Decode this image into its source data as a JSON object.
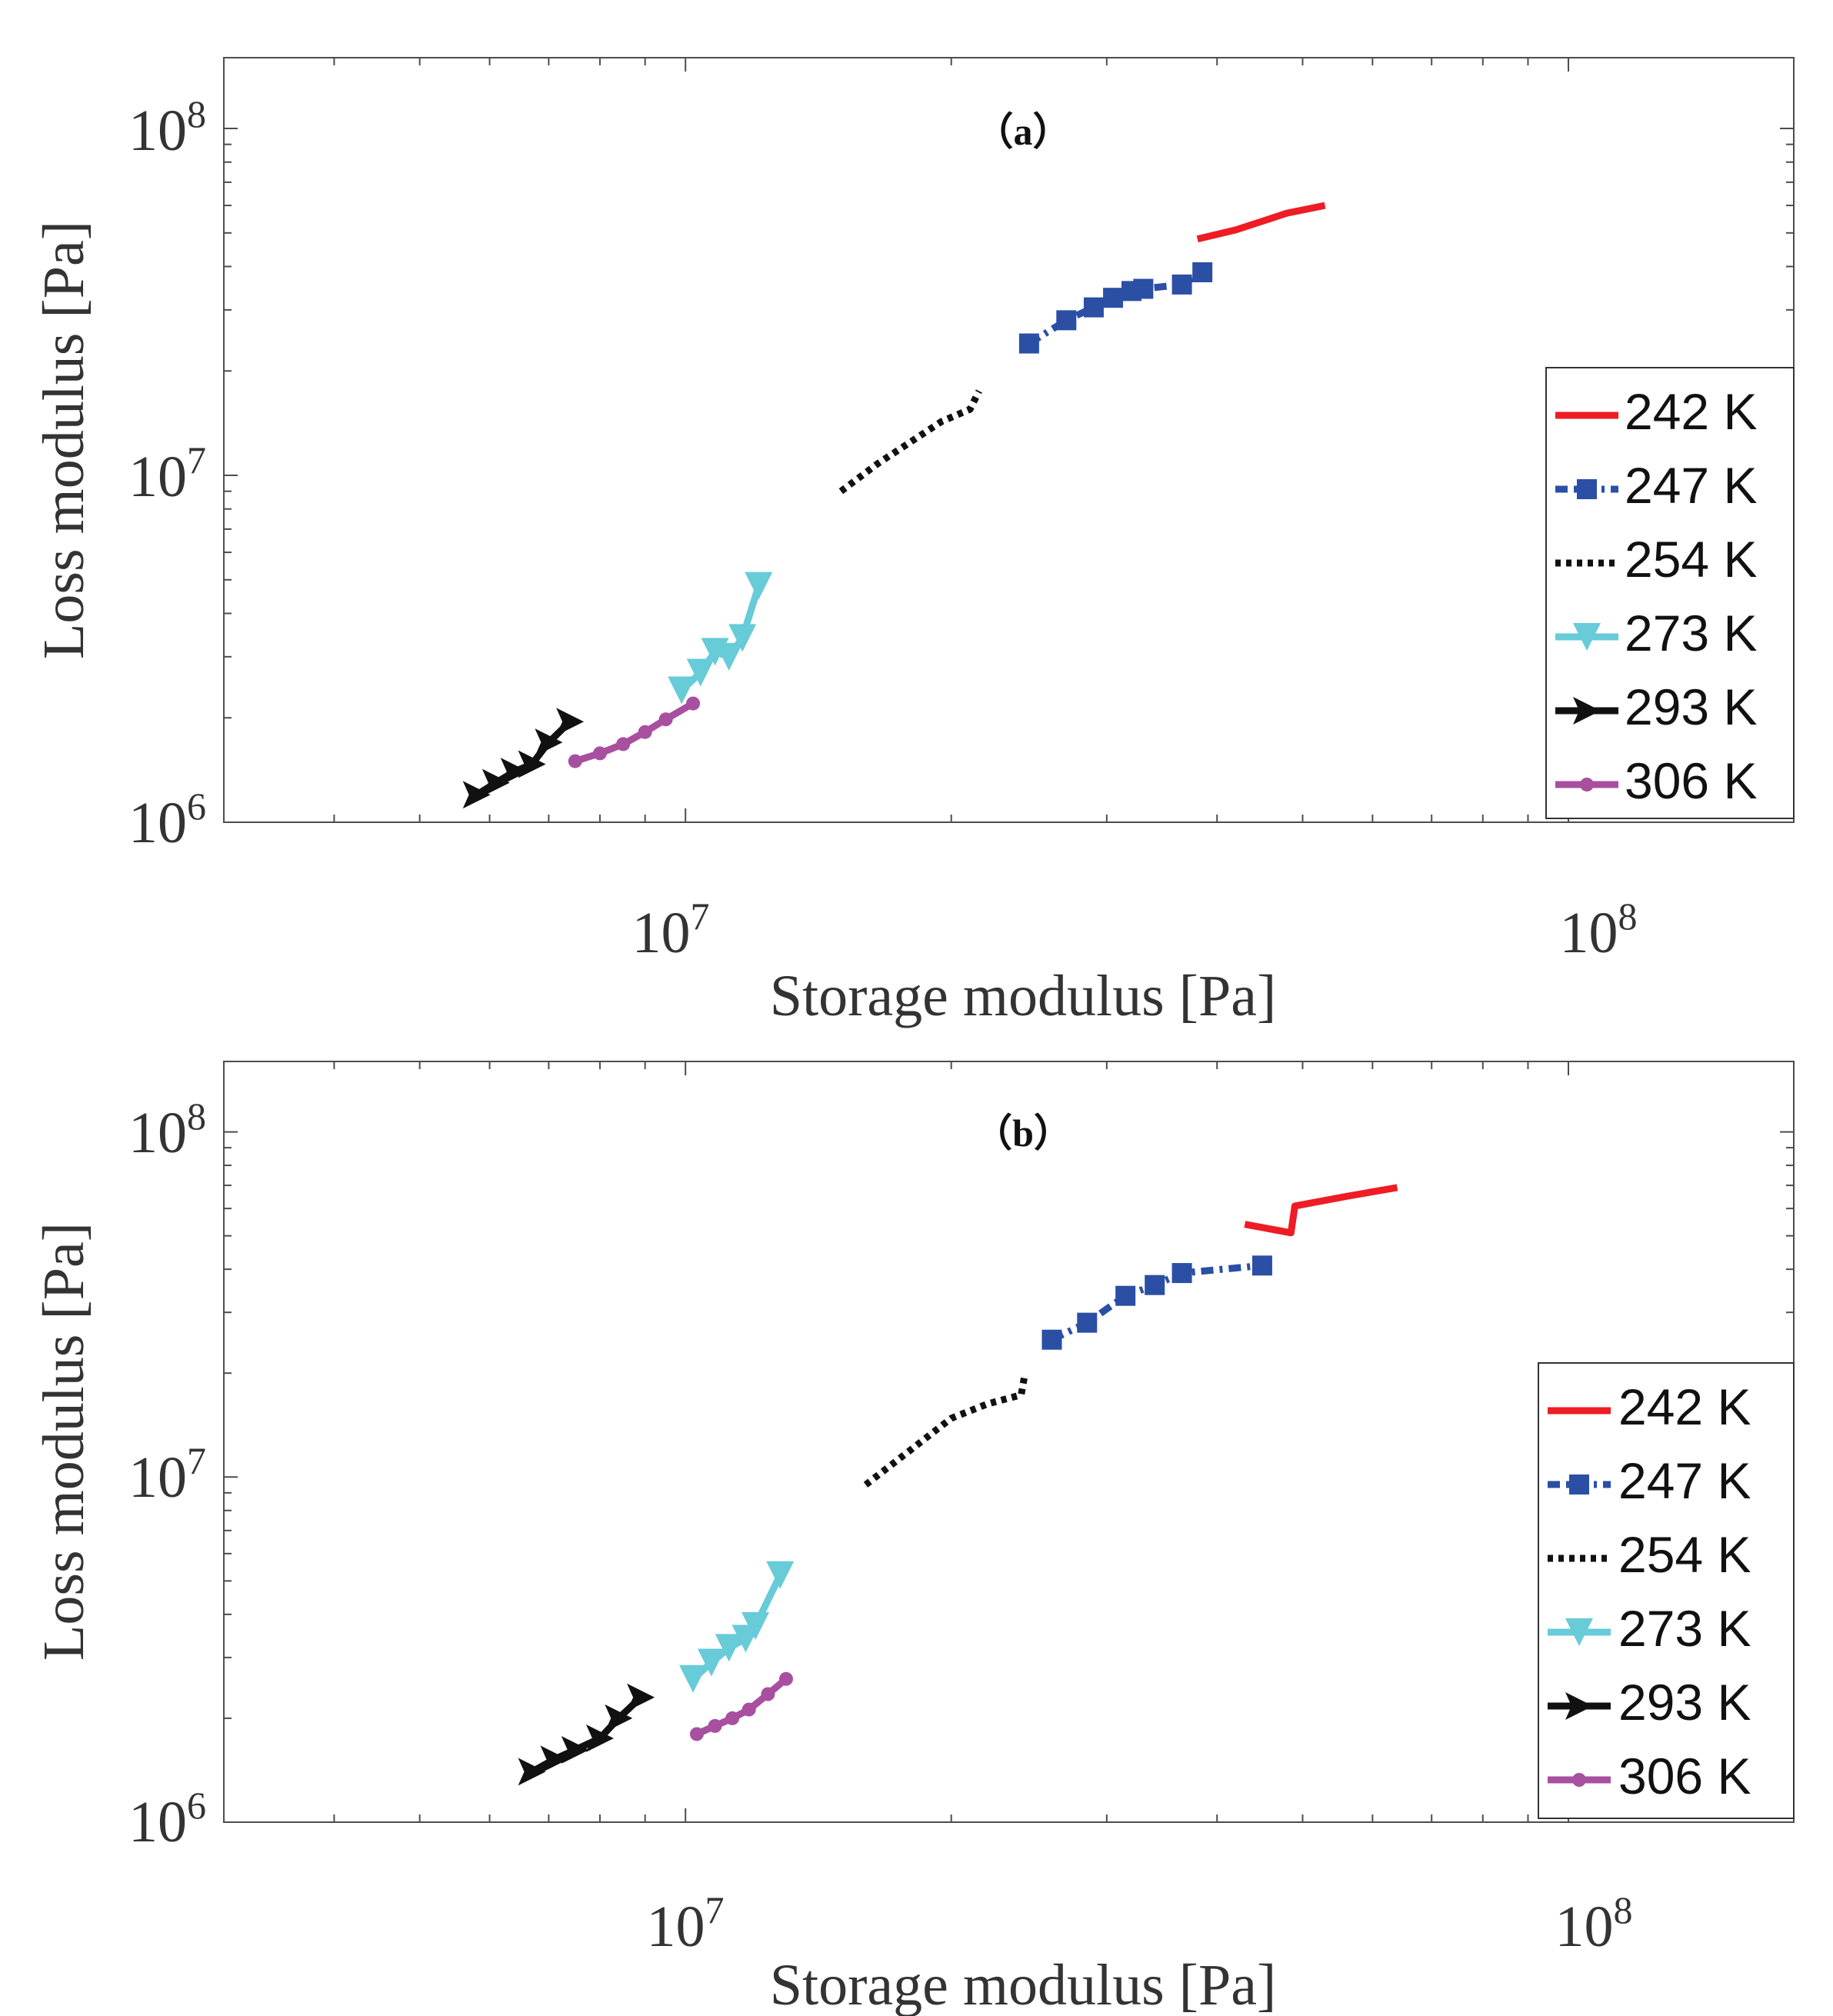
{
  "colors": {
    "s242": "#ee1c25",
    "s247": "#2b4fa5",
    "s254": "#111111",
    "s273": "#67cbd8",
    "s293": "#111111",
    "s306": "#a84f9f"
  },
  "chart_data": [
    {
      "type": "line",
      "scale": "log-log",
      "title": "（a）",
      "xlabel": "Storage modulus [Pa]",
      "ylabel": "Loss modulus [Pa]",
      "xlim": [
        3000000,
        180000000
      ],
      "ylim": [
        1000000,
        160000000
      ],
      "xticks": [
        {
          "base": "10",
          "exp": "7"
        },
        {
          "base": "10",
          "exp": "8"
        }
      ],
      "yticks": [
        {
          "base": "10",
          "exp": "6"
        },
        {
          "base": "10",
          "exp": "7"
        },
        {
          "base": "10",
          "exp": "8"
        }
      ],
      "legend_position": "right",
      "series": [
        {
          "name": "242 K",
          "marker": "none",
          "dash": "solid",
          "color_key": "s242",
          "x": [
            38000000,
            42000000,
            46000000,
            48000000,
            53000000
          ],
          "y": [
            48000000,
            51000000,
            55000000,
            57000000,
            60000000
          ]
        },
        {
          "name": "247 K",
          "marker": "square",
          "dash": "dashdot",
          "color_key": "s247",
          "x": [
            24500000,
            27000000,
            29000000,
            30500000,
            32000000,
            33000000,
            36500000,
            38500000
          ],
          "y": [
            24000000,
            28000000,
            30500000,
            32500000,
            34000000,
            34500000,
            35500000,
            38500000
          ]
        },
        {
          "name": "254 K",
          "marker": "none",
          "dash": "dotted",
          "color_key": "s254",
          "x": [
            15000000,
            16500000,
            18000000,
            19500000,
            21000000,
            21500000
          ],
          "y": [
            9000000,
            10800000,
            12500000,
            14300000,
            15500000,
            17500000
          ]
        },
        {
          "name": "273 K",
          "marker": "triangle-down",
          "dash": "solid",
          "color_key": "s273",
          "x": [
            9900000,
            10400000,
            10800000,
            11200000,
            11600000,
            12100000
          ],
          "y": [
            2400000,
            2700000,
            3100000,
            3000000,
            3400000,
            4800000
          ]
        },
        {
          "name": "293 K",
          "marker": "triangle-right",
          "dash": "solid",
          "color_key": "s293",
          "x": [
            5800000,
            6100000,
            6400000,
            6700000,
            7000000,
            7400000
          ],
          "y": [
            1200000,
            1300000,
            1400000,
            1470000,
            1700000,
            1950000
          ]
        },
        {
          "name": "306 K",
          "marker": "dot",
          "dash": "solid",
          "color_key": "s306",
          "x": [
            7500000,
            8000000,
            8500000,
            9000000,
            9500000,
            10200000
          ],
          "y": [
            1500000,
            1580000,
            1680000,
            1820000,
            1980000,
            2200000
          ]
        }
      ]
    },
    {
      "type": "line",
      "scale": "log-log",
      "title": "（b）",
      "xlabel": "Storage modulus [Pa]",
      "ylabel": "Loss modulus [Pa]",
      "xlim": [
        3000000,
        180000000
      ],
      "ylim": [
        1000000,
        160000000
      ],
      "xticks": [
        {
          "base": "10",
          "exp": "7"
        },
        {
          "base": "10",
          "exp": "8"
        }
      ],
      "yticks": [
        {
          "base": "10",
          "exp": "6"
        },
        {
          "base": "10",
          "exp": "7"
        },
        {
          "base": "10",
          "exp": "8"
        }
      ],
      "legend_position": "right",
      "series": [
        {
          "name": "242 K",
          "marker": "none",
          "dash": "solid",
          "color_key": "s242",
          "x": [
            43000000,
            48500000,
            49000000,
            56000000,
            64000000
          ],
          "y": [
            54000000,
            51000000,
            61000000,
            65000000,
            69000000
          ]
        },
        {
          "name": "247 K",
          "marker": "square",
          "dash": "dashdot",
          "color_key": "s247",
          "x": [
            26000000,
            28500000,
            31500000,
            34000000,
            36500000,
            45000000
          ],
          "y": [
            25000000,
            28000000,
            33500000,
            36000000,
            39000000,
            41000000
          ]
        },
        {
          "name": "254 K",
          "marker": "none",
          "dash": "dotted",
          "color_key": "s254",
          "x": [
            16000000,
            18000000,
            20000000,
            22000000,
            24000000,
            24200000
          ],
          "y": [
            9500000,
            12000000,
            14800000,
            16300000,
            17300000,
            19500000
          ]
        },
        {
          "name": "273 K",
          "marker": "triangle-down",
          "dash": "solid",
          "color_key": "s273",
          "x": [
            10200000,
            10700000,
            11200000,
            11700000,
            12000000,
            12800000
          ],
          "y": [
            2600000,
            2900000,
            3200000,
            3400000,
            3700000,
            5200000
          ]
        },
        {
          "name": "293 K",
          "marker": "triangle-right",
          "dash": "solid",
          "color_key": "s293",
          "x": [
            6700000,
            7100000,
            7500000,
            8000000,
            8400000,
            8900000
          ],
          "y": [
            1400000,
            1520000,
            1620000,
            1750000,
            2000000,
            2300000
          ]
        },
        {
          "name": "306 K",
          "marker": "dot",
          "dash": "solid",
          "color_key": "s306",
          "x": [
            10300000,
            10800000,
            11300000,
            11800000,
            12400000,
            13000000
          ],
          "y": [
            1800000,
            1900000,
            2000000,
            2120000,
            2350000,
            2600000
          ]
        }
      ]
    }
  ]
}
